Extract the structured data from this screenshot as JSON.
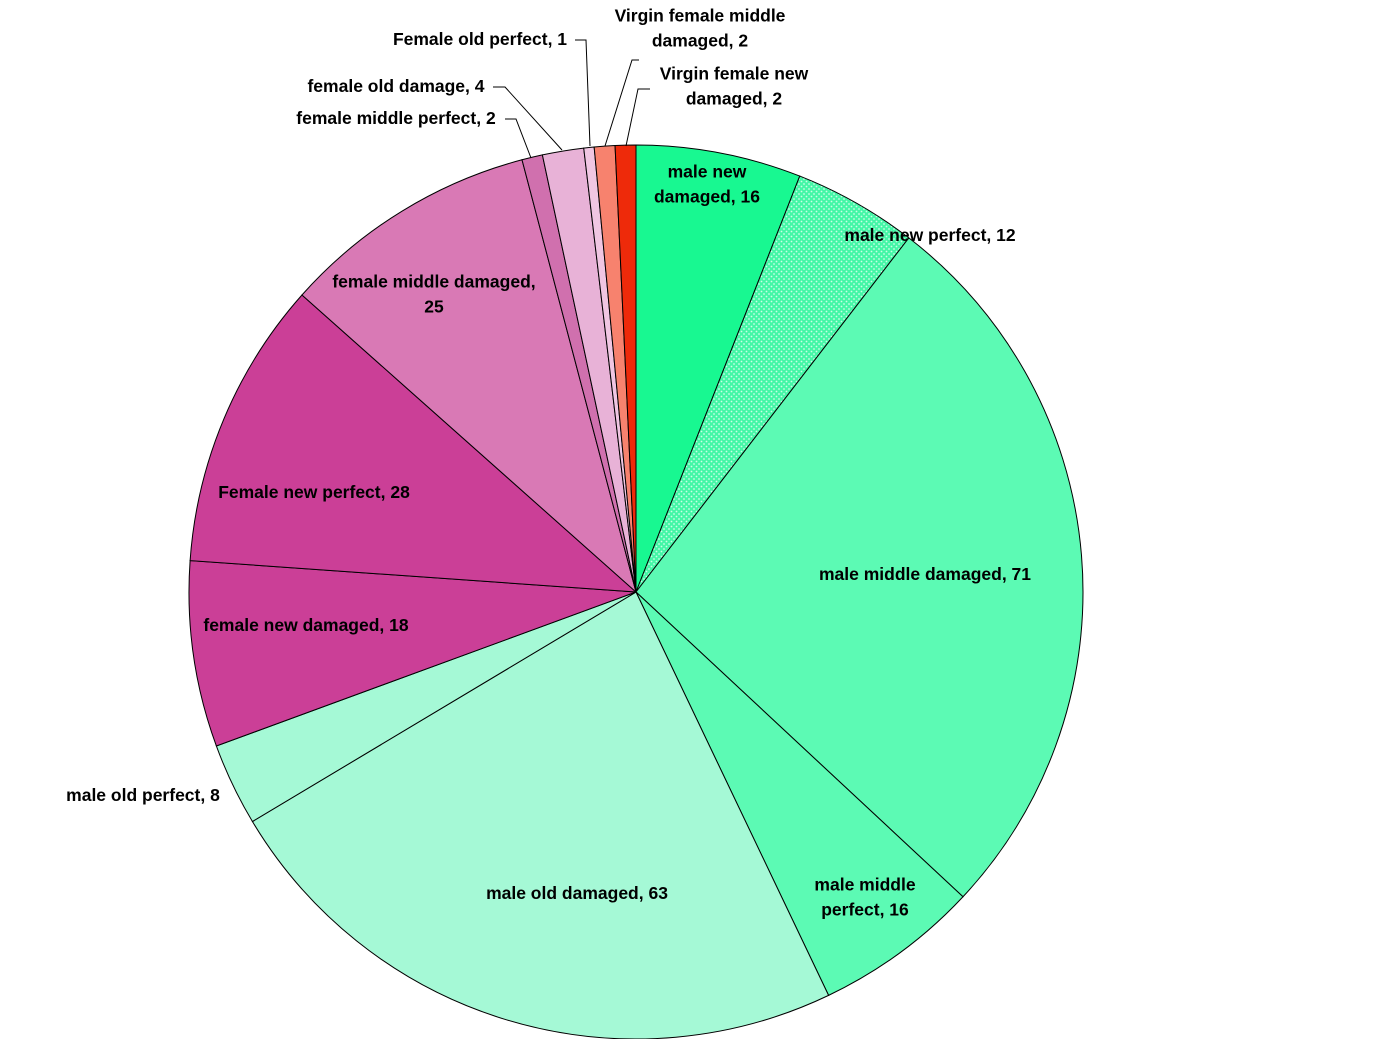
{
  "chart_data": {
    "type": "pie",
    "title": "",
    "start_angle_deg": 0,
    "direction": "clockwise",
    "slices": [
      {
        "label": "male new damaged",
        "value": 16,
        "color": "#18f891",
        "text_lines": [
          "male new",
          "damaged, 16"
        ]
      },
      {
        "label": "male new perfect",
        "value": 12,
        "color": "#44f6a6",
        "pattern": "dotted",
        "text_lines": [
          "male new perfect, 12"
        ]
      },
      {
        "label": "male middle damaged",
        "value": 71,
        "color": "#5cfab4",
        "text_lines": [
          "male middle damaged, 71"
        ]
      },
      {
        "label": "male middle perfect",
        "value": 16,
        "color": "#5cfab4",
        "text_lines": [
          "male middle",
          "perfect, 16"
        ]
      },
      {
        "label": "male old damaged",
        "value": 63,
        "color": "#a5f9d6",
        "text_lines": [
          "male old damaged, 63"
        ]
      },
      {
        "label": "male old perfect",
        "value": 8,
        "color": "#a5f9d6",
        "text_lines": [
          "male old perfect, 8"
        ]
      },
      {
        "label": "female new damaged",
        "value": 18,
        "color": "#cb3f97",
        "text_lines": [
          "female new damaged, 18"
        ]
      },
      {
        "label": "Female new perfect",
        "value": 28,
        "color": "#cb3f97",
        "text_lines": [
          "Female new perfect, 28"
        ]
      },
      {
        "label": "female middle damaged",
        "value": 25,
        "color": "#d979b5",
        "text_lines": [
          "female middle damaged,",
          "25"
        ]
      },
      {
        "label": "female middle perfect",
        "value": 2,
        "color": "#d070ae",
        "text_lines": [
          "female middle perfect, 2"
        ]
      },
      {
        "label": "female old damage",
        "value": 4,
        "color": "#e8b2d7",
        "text_lines": [
          "female old damage, 4"
        ]
      },
      {
        "label": "Female old perfect",
        "value": 1,
        "color": "#f0c6e2",
        "text_lines": [
          "Female old perfect, 1"
        ]
      },
      {
        "label": "Virgin female middle damaged",
        "value": 2,
        "color": "#f7826e",
        "text_lines": [
          "Virgin  female middle",
          "damaged, 2"
        ]
      },
      {
        "label": "Virgin female new damaged",
        "value": 2,
        "color": "#ee2a0a",
        "text_lines": [
          "Virgin  female  new",
          "damaged, 2"
        ]
      }
    ]
  }
}
